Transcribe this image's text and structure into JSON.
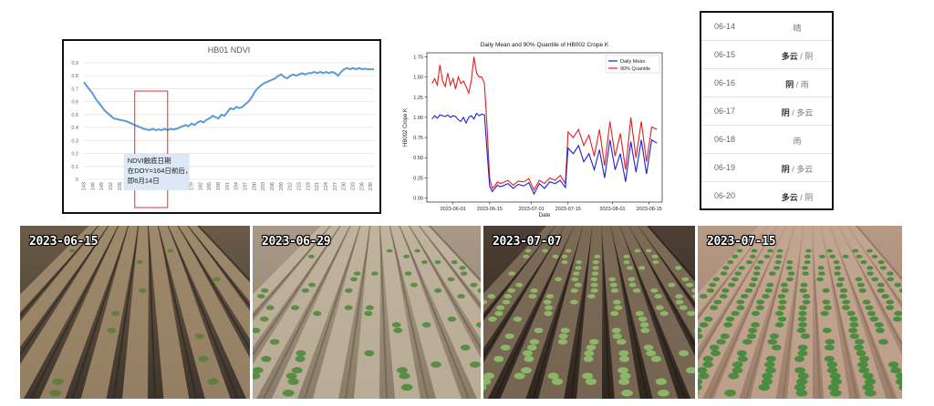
{
  "chart_data": [
    {
      "type": "line",
      "title": "HB01 NDVI",
      "xlabel": "",
      "ylabel": "",
      "ylim": [
        0,
        0.9
      ],
      "yticks": [
        "0",
        "0.1",
        "0.2",
        "0.3",
        "0.4",
        "0.5",
        "0.6",
        "0.7",
        "0.8",
        "0.9"
      ],
      "xticks": [
        "143",
        "146",
        "149",
        "152",
        "155",
        "158",
        "161",
        "164",
        "167",
        "170",
        "173",
        "176",
        "179",
        "182",
        "185",
        "188",
        "191",
        "194",
        "197",
        "200",
        "203",
        "206",
        "209",
        "212",
        "215",
        "218",
        "221",
        "224",
        "227",
        "230",
        "233",
        "236",
        "239"
      ],
      "grid": true,
      "color": "#5b9bd5",
      "series": [
        {
          "x": [
            143,
            144,
            145,
            146,
            147,
            148,
            149,
            150,
            151,
            152,
            153,
            154,
            155,
            156,
            157,
            158,
            159,
            160,
            161,
            162,
            163,
            164,
            165,
            166,
            167,
            168,
            169,
            170,
            171,
            172,
            173,
            174,
            175,
            176,
            177,
            178,
            179,
            180,
            181,
            182,
            183,
            184,
            185,
            186,
            187,
            188,
            189,
            190,
            191,
            192,
            193,
            194,
            195,
            196,
            197,
            198,
            199,
            200,
            201,
            202,
            203,
            204,
            205,
            206,
            207,
            208,
            209,
            210,
            211,
            212,
            213,
            214,
            215,
            216,
            217,
            218,
            219,
            220,
            221,
            222,
            223,
            224,
            225,
            226,
            227,
            228,
            229,
            230,
            231,
            232,
            233,
            234,
            235,
            236,
            237,
            238,
            239,
            240
          ],
          "y": [
            0.75,
            0.72,
            0.69,
            0.66,
            0.62,
            0.59,
            0.56,
            0.53,
            0.51,
            0.49,
            0.47,
            0.465,
            0.46,
            0.455,
            0.45,
            0.44,
            0.43,
            0.42,
            0.41,
            0.4,
            0.39,
            0.385,
            0.38,
            0.39,
            0.38,
            0.385,
            0.38,
            0.39,
            0.38,
            0.39,
            0.385,
            0.39,
            0.4,
            0.41,
            0.42,
            0.41,
            0.43,
            0.42,
            0.44,
            0.45,
            0.44,
            0.46,
            0.47,
            0.49,
            0.48,
            0.47,
            0.5,
            0.49,
            0.52,
            0.55,
            0.54,
            0.56,
            0.55,
            0.56,
            0.58,
            0.6,
            0.63,
            0.67,
            0.7,
            0.72,
            0.74,
            0.75,
            0.76,
            0.77,
            0.78,
            0.8,
            0.81,
            0.79,
            0.78,
            0.8,
            0.81,
            0.8,
            0.81,
            0.82,
            0.81,
            0.82,
            0.82,
            0.83,
            0.82,
            0.83,
            0.82,
            0.83,
            0.82,
            0.83,
            0.82,
            0.8,
            0.83,
            0.85,
            0.86,
            0.85,
            0.86,
            0.85,
            0.86,
            0.85,
            0.855,
            0.85,
            0.85,
            0.85
          ]
        }
      ],
      "annotation": {
        "x_range": [
          160,
          171
        ],
        "text": "NDVI触底日期在DOY=164日前后，即6月14日"
      }
    },
    {
      "type": "line",
      "title": "Daily Mean and 90% Quantile of HB002 Crope K",
      "xlabel": "Date",
      "ylabel": "HB002 Crope K",
      "ylim": [
        -0.05,
        1.8
      ],
      "yticks": [
        "0.00",
        "0.25",
        "0.50",
        "0.75",
        "1.00",
        "1.25",
        "1.50",
        "1.75"
      ],
      "xticks": [
        "2023-06-01",
        "2023-06-15",
        "2023-07-01",
        "2023-07-15",
        "2023-08-01",
        "2023-08-15"
      ],
      "grid": false,
      "legend": "top-right",
      "series": [
        {
          "name": "Daily Mean",
          "color": "#1f1fd6",
          "x": [
            "2023-05-24",
            "2023-05-25",
            "2023-05-26",
            "2023-05-27",
            "2023-05-28",
            "2023-05-29",
            "2023-05-30",
            "2023-05-31",
            "2023-06-01",
            "2023-06-02",
            "2023-06-03",
            "2023-06-04",
            "2023-06-05",
            "2023-06-06",
            "2023-06-07",
            "2023-06-08",
            "2023-06-09",
            "2023-06-10",
            "2023-06-11",
            "2023-06-12",
            "2023-06-13",
            "2023-06-14",
            "2023-06-15",
            "2023-06-16",
            "2023-06-17",
            "2023-06-18",
            "2023-06-19",
            "2023-06-20",
            "2023-06-22",
            "2023-06-24",
            "2023-06-26",
            "2023-06-28",
            "2023-06-30",
            "2023-07-02",
            "2023-07-04",
            "2023-07-06",
            "2023-07-08",
            "2023-07-10",
            "2023-07-12",
            "2023-07-14",
            "2023-07-15",
            "2023-07-17",
            "2023-07-19",
            "2023-07-21",
            "2023-07-23",
            "2023-07-25",
            "2023-07-27",
            "2023-07-29",
            "2023-07-31",
            "2023-08-02",
            "2023-08-04",
            "2023-08-06",
            "2023-08-08",
            "2023-08-10",
            "2023-08-12",
            "2023-08-14",
            "2023-08-16",
            "2023-08-18"
          ],
          "y": [
            0.98,
            1.02,
            0.99,
            1.03,
            1.02,
            1.01,
            1.03,
            1.0,
            1.02,
            1.01,
            0.97,
            0.95,
            1.0,
            0.93,
            1.0,
            1.02,
            0.98,
            1.05,
            1.02,
            1.04,
            1.03,
            0.6,
            0.15,
            0.08,
            0.12,
            0.16,
            0.14,
            0.15,
            0.18,
            0.12,
            0.17,
            0.15,
            0.19,
            0.05,
            0.18,
            0.12,
            0.2,
            0.18,
            0.22,
            0.13,
            0.62,
            0.55,
            0.65,
            0.45,
            0.55,
            0.35,
            0.6,
            0.25,
            0.72,
            0.35,
            0.55,
            0.2,
            0.7,
            0.32,
            0.72,
            0.3,
            0.72,
            0.68
          ]
        },
        {
          "name": "90% Quantile",
          "color": "#e02020",
          "x": [
            "2023-05-24",
            "2023-05-25",
            "2023-05-26",
            "2023-05-27",
            "2023-05-28",
            "2023-05-29",
            "2023-05-30",
            "2023-05-31",
            "2023-06-01",
            "2023-06-02",
            "2023-06-03",
            "2023-06-04",
            "2023-06-05",
            "2023-06-06",
            "2023-06-07",
            "2023-06-08",
            "2023-06-09",
            "2023-06-10",
            "2023-06-11",
            "2023-06-12",
            "2023-06-13",
            "2023-06-14",
            "2023-06-15",
            "2023-06-16",
            "2023-06-17",
            "2023-06-18",
            "2023-06-19",
            "2023-06-20",
            "2023-06-22",
            "2023-06-24",
            "2023-06-26",
            "2023-06-28",
            "2023-06-30",
            "2023-07-02",
            "2023-07-04",
            "2023-07-06",
            "2023-07-08",
            "2023-07-10",
            "2023-07-12",
            "2023-07-14",
            "2023-07-15",
            "2023-07-17",
            "2023-07-19",
            "2023-07-21",
            "2023-07-23",
            "2023-07-25",
            "2023-07-27",
            "2023-07-29",
            "2023-07-31",
            "2023-08-02",
            "2023-08-04",
            "2023-08-06",
            "2023-08-08",
            "2023-08-10",
            "2023-08-12",
            "2023-08-14",
            "2023-08-16",
            "2023-08-18"
          ],
          "y": [
            1.42,
            1.48,
            1.4,
            1.65,
            1.45,
            1.38,
            1.55,
            1.4,
            1.48,
            1.35,
            1.5,
            1.42,
            1.45,
            1.38,
            1.3,
            1.45,
            1.75,
            1.55,
            1.5,
            1.5,
            1.42,
            0.9,
            0.25,
            0.12,
            0.15,
            0.2,
            0.18,
            0.19,
            0.22,
            0.16,
            0.21,
            0.2,
            0.24,
            0.1,
            0.22,
            0.18,
            0.25,
            0.22,
            0.28,
            0.18,
            0.82,
            0.75,
            0.85,
            0.65,
            0.78,
            0.52,
            0.85,
            0.4,
            0.95,
            0.52,
            0.8,
            0.35,
            1.0,
            0.5,
            0.95,
            0.45,
            0.88,
            0.85
          ]
        }
      ]
    }
  ],
  "weather": [
    {
      "date": "06-14",
      "main": "晴",
      "sub": ""
    },
    {
      "date": "06-15",
      "main": "多云",
      "sub": "/ 阴"
    },
    {
      "date": "06-16",
      "main": "阴",
      "sub": "/ 雨"
    },
    {
      "date": "06-17",
      "main": "阴",
      "sub": "/ 多云"
    },
    {
      "date": "06-18",
      "main": "雨",
      "sub": ""
    },
    {
      "date": "06-19",
      "main": "阴",
      "sub": "/ 多云"
    },
    {
      "date": "06-20",
      "main": "多云",
      "sub": "/ 阴"
    }
  ],
  "photos": [
    {
      "date": "2023-06-15"
    },
    {
      "date": "2023-06-29"
    },
    {
      "date": "2023-07-07"
    },
    {
      "date": "2023-07-15"
    }
  ]
}
